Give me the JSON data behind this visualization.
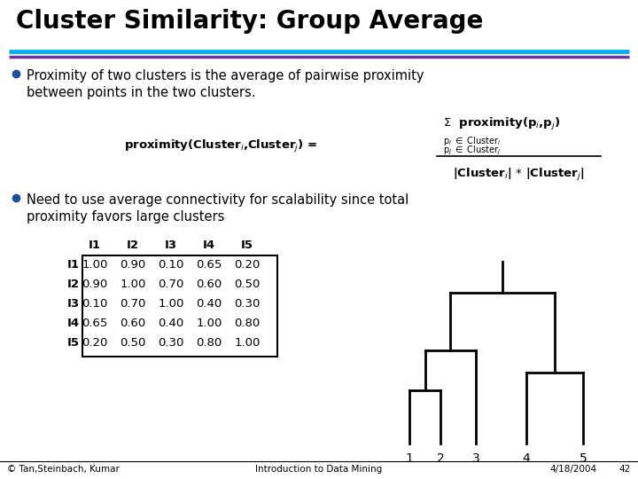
{
  "title": "Cluster Similarity: Group Average",
  "title_fontsize": 20,
  "title_fontweight": "bold",
  "bg_color": "#ffffff",
  "line1_color": "#00b0f0",
  "line2_color": "#7030a0",
  "bullet_color": "#1f4e9f",
  "bullet1_line1": "Proximity of two clusters is the average of pairwise proximity",
  "bullet1_line2": "between points in the two clusters.",
  "bullet2_line1": "Need to use average connectivity for scalability since total",
  "bullet2_line2": "proximity favors large clusters",
  "footer_left": "© Tan,Steinbach, Kumar",
  "footer_center": "Introduction to Data Mining",
  "footer_right": "4/18/2004",
  "footer_page": "42",
  "matrix_labels": [
    "I1",
    "I2",
    "I3",
    "I4",
    "I5"
  ],
  "matrix_data": [
    [
      1.0,
      0.9,
      0.1,
      0.65,
      0.2
    ],
    [
      0.9,
      1.0,
      0.7,
      0.6,
      0.5
    ],
    [
      0.1,
      0.7,
      1.0,
      0.4,
      0.3
    ],
    [
      0.65,
      0.6,
      0.4,
      1.0,
      0.8
    ],
    [
      0.2,
      0.5,
      0.3,
      0.8,
      1.0
    ]
  ]
}
